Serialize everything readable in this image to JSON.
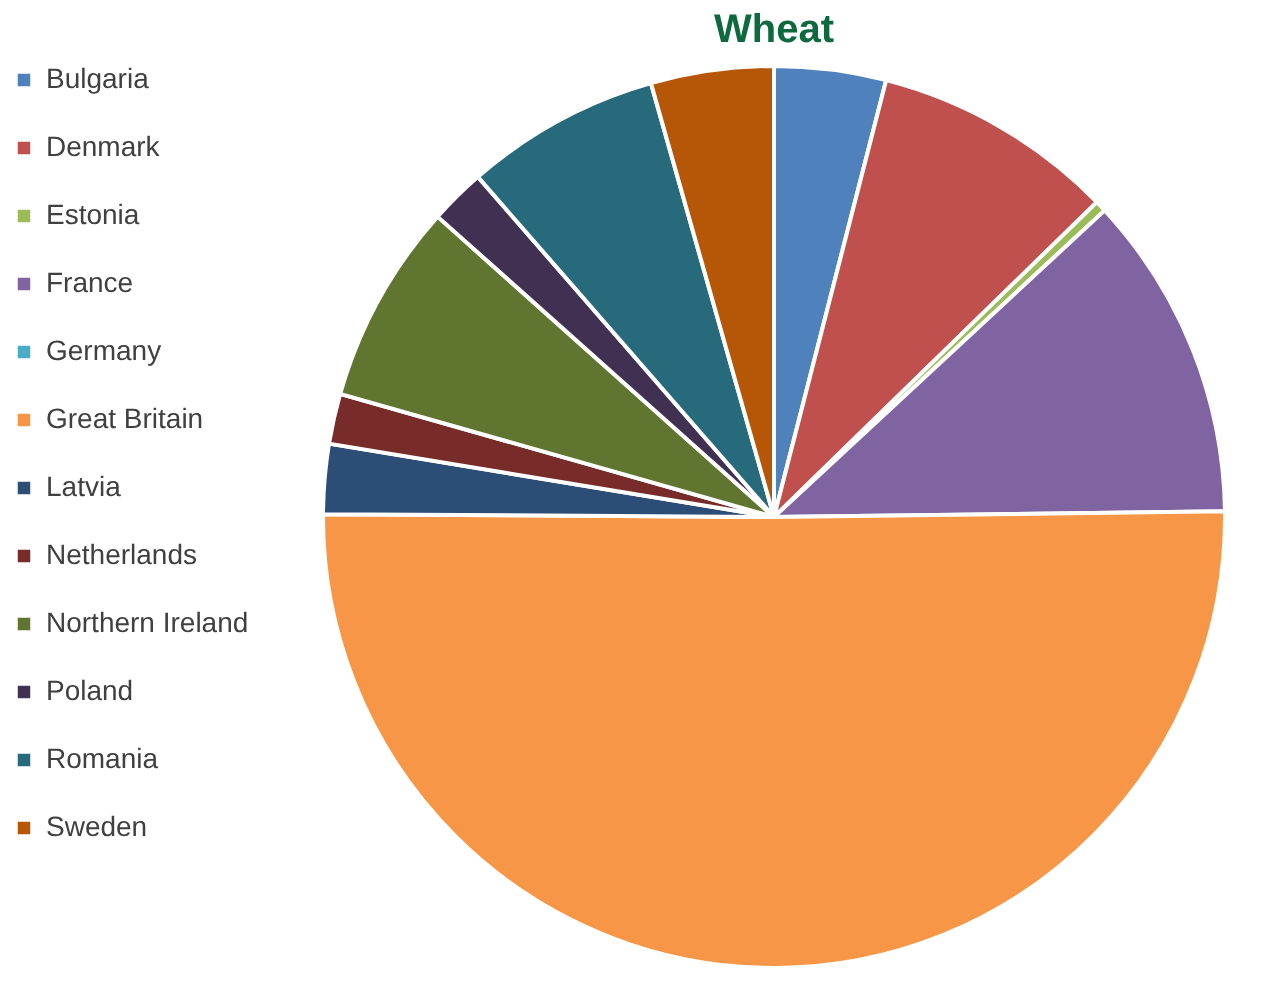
{
  "chart_data": {
    "type": "pie",
    "title": "Wheat",
    "categories": [
      "Bulgaria",
      "Denmark",
      "Estonia",
      "France",
      "Germany",
      "Great Britain",
      "Latvia",
      "Netherlands",
      "Northern Ireland",
      "Poland",
      "Romania",
      "Sweden"
    ],
    "values": [
      4,
      8.7,
      0.4,
      11.7,
      null,
      50.3,
      2.5,
      1.8,
      7.2,
      2,
      7,
      4.4
    ],
    "colors": [
      "#4f81bd",
      "#c0504d",
      "#9bbb59",
      "#8064a2",
      "#4bacc6",
      "#f79646",
      "#2c4d75",
      "#772c2a",
      "#5f7530",
      "#403152",
      "#276a7c",
      "#b65708"
    ],
    "legend": "left"
  }
}
